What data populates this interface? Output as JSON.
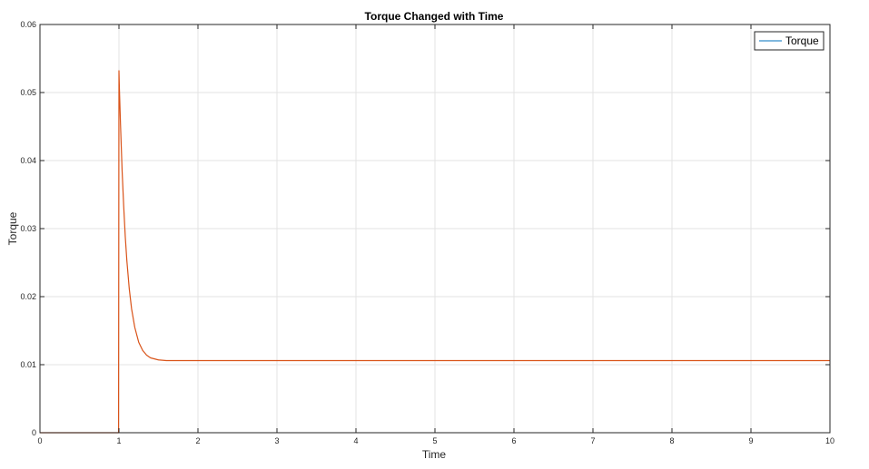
{
  "chart_data": {
    "type": "line",
    "title": "Torque Changed with Time",
    "xlabel": "Time",
    "ylabel": "Torque",
    "xlim": [
      0,
      10
    ],
    "ylim": [
      0,
      0.06
    ],
    "x_ticks": [
      0,
      1,
      2,
      3,
      4,
      5,
      6,
      7,
      8,
      9,
      10
    ],
    "y_ticks": [
      0,
      0.01,
      0.02,
      0.03,
      0.04,
      0.05,
      0.06
    ],
    "grid": true,
    "legend": {
      "placement": "top-right",
      "entries": [
        "Torque"
      ]
    },
    "colors": {
      "legend_line": "#0072BD",
      "series_line": "#D95319",
      "grid": "#e3e3e3",
      "axis": "#262626"
    },
    "series": [
      {
        "name": "Torque",
        "x": [
          0,
          0.995,
          1.0,
          1.005,
          1.02,
          1.04,
          1.06,
          1.08,
          1.1,
          1.13,
          1.16,
          1.2,
          1.25,
          1.3,
          1.35,
          1.4,
          1.5,
          1.6,
          1.8,
          2,
          3,
          4,
          5,
          6,
          7,
          8,
          9,
          10
        ],
        "y": [
          0,
          0,
          0.0532,
          0.0508,
          0.0452,
          0.0385,
          0.0333,
          0.0288,
          0.0253,
          0.0212,
          0.0182,
          0.0155,
          0.0133,
          0.0121,
          0.0114,
          0.011,
          0.0107,
          0.0106,
          0.0106,
          0.0106,
          0.0106,
          0.0106,
          0.0106,
          0.0106,
          0.0106,
          0.0106,
          0.0106,
          0.0106
        ]
      }
    ]
  }
}
